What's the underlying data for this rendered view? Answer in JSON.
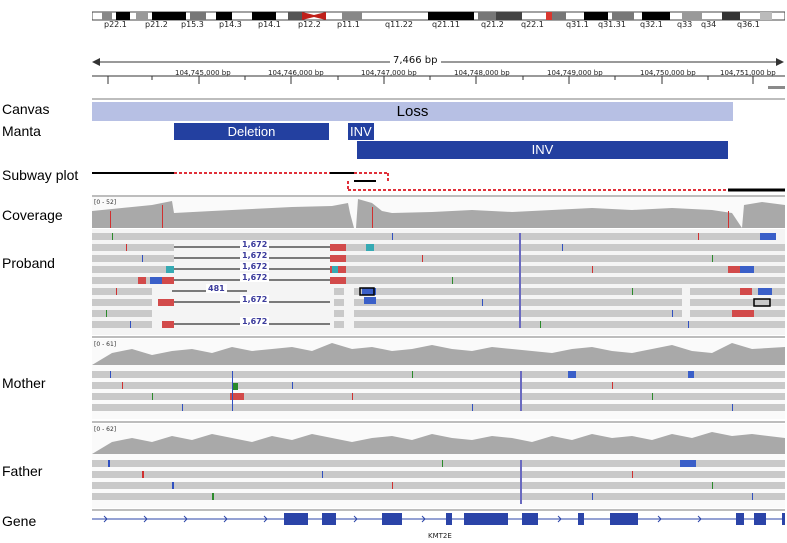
{
  "ideogram": {
    "bands": [
      "p22.1",
      "p21.2",
      "p15.3",
      "p14.3",
      "p14.1",
      "p12.2",
      "p11.1",
      "q11.22",
      "q21.11",
      "q21.2",
      "q22.1",
      "q31.1",
      "q31.31",
      "q32.1",
      "q33",
      "q34",
      "q36.1"
    ]
  },
  "ruler": {
    "span": "7,466 bp",
    "ticks": [
      "104,745,000 bp",
      "104,746,000 bp",
      "104,747,000 bp",
      "104,748,000 bp",
      "104,749,000 bp",
      "104,750,000 bp",
      "104,751,000 bp"
    ]
  },
  "tracks": {
    "canvas": {
      "label": "Canvas",
      "call": "Loss"
    },
    "manta": {
      "label": "Manta",
      "calls": [
        "Deletion",
        "INV",
        "INV"
      ]
    },
    "subway": {
      "label": "Subway plot"
    },
    "coverage": {
      "label": "Coverage",
      "range": "[0 - 52]"
    },
    "proband": {
      "label": "Proband",
      "insert_sizes": [
        "1,672",
        "1,672",
        "1,672",
        "1,672",
        "481",
        "1,672",
        "1,672"
      ]
    },
    "mother": {
      "label": "Mother",
      "range": "[0 - 61]"
    },
    "father": {
      "label": "Father",
      "range": "[0 - 62]"
    },
    "gene": {
      "label": "Gene",
      "name": "KMT2E"
    }
  },
  "colors": {
    "canvas_loss": "#b7c0e4",
    "manta_call": "#2340a0",
    "coverage": "#a9a9a9",
    "read": "#c9c9c9",
    "discordant": "#d24a4a",
    "gene": "#2b44a8"
  }
}
